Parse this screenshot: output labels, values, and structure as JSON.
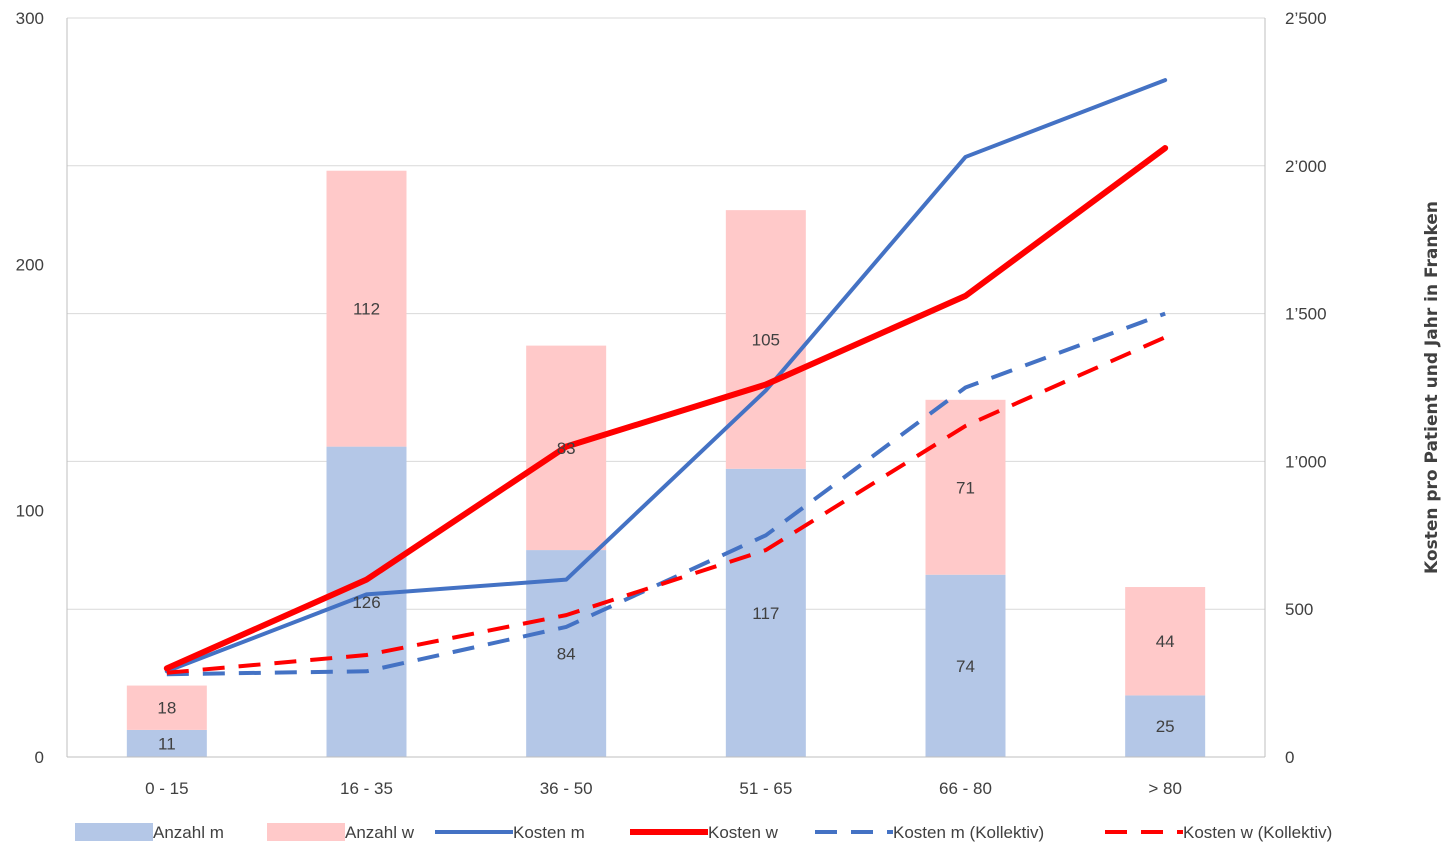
{
  "chart_data": {
    "type": "bar",
    "categories": [
      "0 - 15",
      "16 - 35",
      "36 - 50",
      "51 - 65",
      "66 - 80",
      "> 80"
    ],
    "bar_series": [
      {
        "name": "Anzahl m",
        "values": [
          11,
          126,
          84,
          117,
          74,
          25
        ],
        "color": "#b4c7e7"
      },
      {
        "name": "Anzahl w",
        "values": [
          18,
          112,
          83,
          105,
          71,
          44
        ],
        "color": "#ffc9c9"
      }
    ],
    "line_series": [
      {
        "name": "Kosten m",
        "values": [
          290,
          550,
          600,
          1240,
          2030,
          2290
        ],
        "color": "#4472c4",
        "style": "solid",
        "axis": "right"
      },
      {
        "name": "Kosten w",
        "values": [
          300,
          600,
          1050,
          1260,
          1560,
          2060
        ],
        "color": "#ff0000",
        "style": "solid",
        "axis": "right"
      },
      {
        "name": "Kosten m (Kollektiv)",
        "values": [
          280,
          290,
          440,
          750,
          1250,
          1500
        ],
        "color": "#4472c4",
        "style": "dashed",
        "axis": "right"
      },
      {
        "name": "Kosten w (Kollektiv)",
        "values": [
          285,
          345,
          480,
          700,
          1120,
          1420
        ],
        "color": "#ff0000",
        "style": "dashed",
        "axis": "right"
      }
    ],
    "y_left": {
      "min": 0,
      "max": 300,
      "ticks": [
        "0",
        "100",
        "200",
        "300"
      ]
    },
    "y_right": {
      "min": 0,
      "max": 2500,
      "ticks": [
        "0",
        "500",
        "1’000",
        "1’500",
        "2’000",
        "2’500"
      ],
      "label": "Kosten pro Patient und Jahr in Franken"
    },
    "stacked": true,
    "grid": true,
    "legend_position": "bottom"
  }
}
